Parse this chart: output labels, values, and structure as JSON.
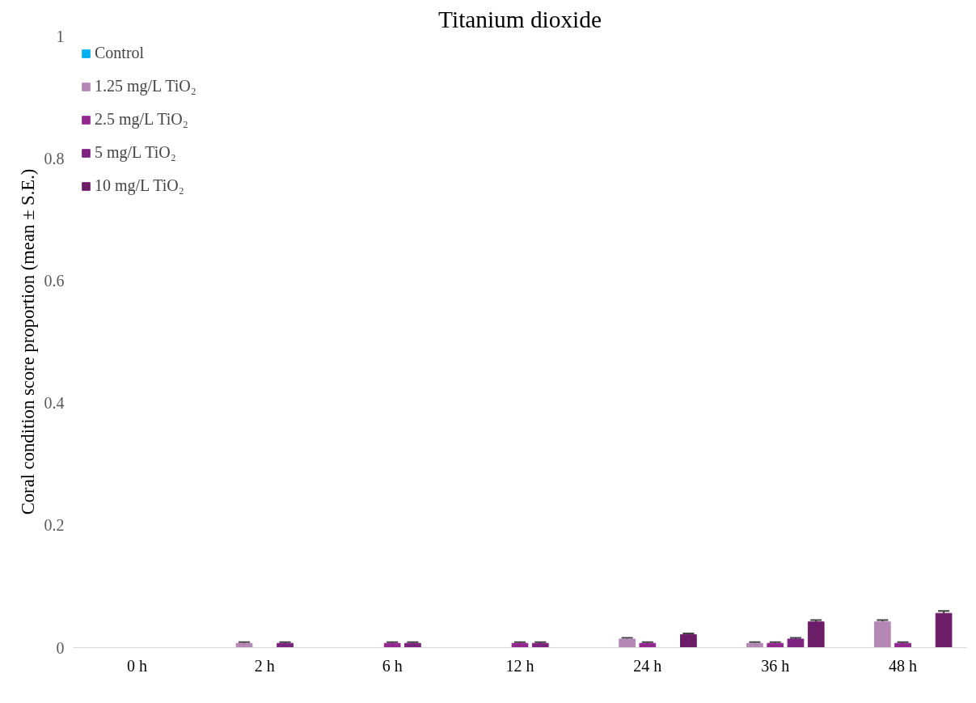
{
  "chart_data": {
    "type": "bar",
    "title": "Titanium dioxide",
    "ylabel": "Coral condition score proportion (mean ± S.E.)",
    "categories": [
      "0 h",
      "2 h",
      "6 h",
      "12 h",
      "24 h",
      "36 h",
      "48 h"
    ],
    "series": [
      {
        "name": "Control",
        "color": "#00b0f0",
        "values": [
          0,
          0,
          0,
          0,
          0,
          0,
          0
        ]
      },
      {
        "name": "1.25 mg/L TiO₂",
        "color": "#b587b5",
        "values": [
          0,
          0.007,
          0,
          0,
          0.014,
          0.007,
          0.042
        ],
        "errors": [
          null,
          0.002,
          null,
          null,
          0.002,
          0.002,
          0.003
        ]
      },
      {
        "name": "2.5 mg/L TiO₂",
        "color": "#93278f",
        "values": [
          0,
          0,
          0.007,
          0.007,
          0.007,
          0.007,
          0.007
        ],
        "errors": [
          null,
          null,
          0.002,
          0.002,
          0.002,
          0.002,
          0.002
        ]
      },
      {
        "name": "5 mg/L TiO₂",
        "color": "#7e2280",
        "values": [
          0,
          0.007,
          0.007,
          0.007,
          0,
          0.014,
          0
        ],
        "errors": [
          null,
          0.002,
          0.002,
          0.002,
          null,
          0.002,
          null
        ]
      },
      {
        "name": "10 mg/L TiO₂",
        "color": "#6b1d68",
        "values": [
          0,
          0,
          0,
          0,
          0.021,
          0.042,
          0.056
        ],
        "errors": [
          null,
          null,
          null,
          null,
          0.002,
          0.003,
          0.004
        ]
      }
    ],
    "ylim": [
      0,
      1
    ],
    "yticks": [
      0,
      0.2,
      0.4,
      0.6,
      0.8,
      1
    ],
    "grid": false,
    "legend": "top left"
  }
}
